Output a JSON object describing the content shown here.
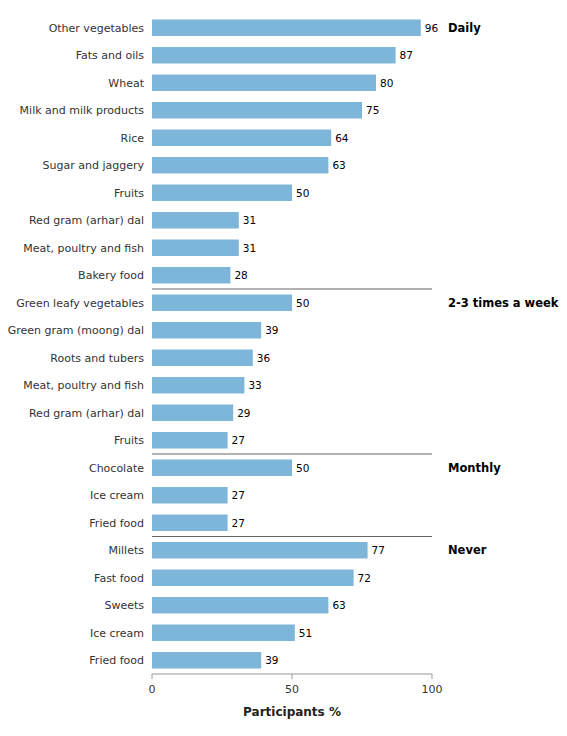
{
  "chart_data": {
    "type": "bar",
    "orientation": "horizontal",
    "color": "#7EB6D9",
    "xlabel": "Participants %",
    "xlim": [
      0,
      100
    ],
    "xticks": [
      0,
      50,
      100
    ],
    "grid": false,
    "data_labels": true,
    "sections": [
      {
        "label": "Daily",
        "categories": [
          "Other vegetables",
          "Fats and oils",
          "Wheat",
          "Milk and milk products",
          "Rice",
          "Sugar and jaggery",
          "Fruits",
          "Red gram (arhar) dal",
          "Meat, poultry and fish",
          "Bakery food"
        ],
        "values": [
          96,
          87,
          80,
          75,
          64,
          63,
          50,
          31,
          31,
          28
        ]
      },
      {
        "label": "2-3 times a week",
        "categories": [
          "Green leafy vegetables",
          "Green gram (moong) dal",
          "Roots and tubers",
          "Meat, poultry and fish",
          "Red gram (arhar) dal",
          "Fruits"
        ],
        "values": [
          50,
          39,
          36,
          33,
          29,
          27
        ]
      },
      {
        "label": "Monthly",
        "categories": [
          "Chocolate",
          "Ice cream",
          "Fried food"
        ],
        "values": [
          50,
          27,
          27
        ]
      },
      {
        "label": "Never",
        "categories": [
          "Millets",
          "Fast food",
          "Sweets",
          "Ice cream",
          "Fried food"
        ],
        "values": [
          77,
          72,
          63,
          51,
          39
        ]
      }
    ]
  }
}
